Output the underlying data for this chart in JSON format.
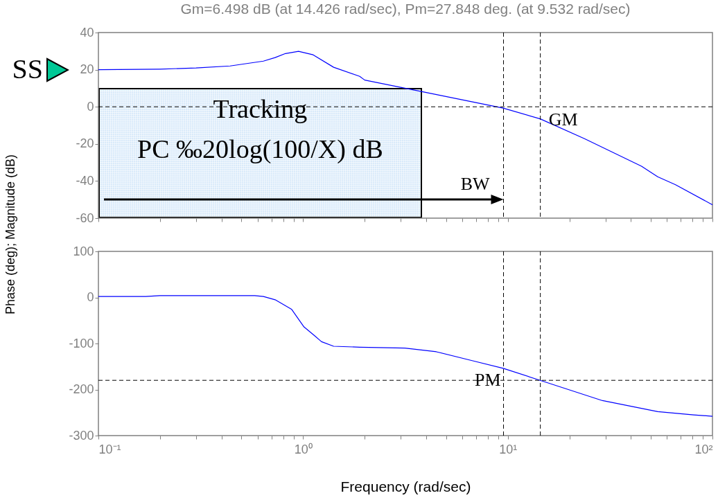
{
  "chart_data": [
    {
      "type": "line",
      "title": "Gm=6.498 dB (at 14.426 rad/sec), Pm=27.848 deg. (at 9.532 rad/sec)",
      "ylabel": "Phase (deg); Magnitude (dB)",
      "log": "x",
      "series": [
        {
          "color": "#0000ff",
          "x": [
            0.1,
            0.2,
            0.3,
            0.44,
            0.64,
            0.73,
            0.82,
            0.95,
            1.12,
            1.41,
            1.89,
            2.0,
            3.5,
            9.5,
            14.4,
            23.7,
            45,
            54,
            66,
            100
          ],
          "values": [
            20,
            20.3,
            20.9,
            22,
            24.6,
            26.5,
            28.7,
            29.9,
            28,
            21.3,
            16.4,
            14.4,
            9,
            -0.7,
            -6.5,
            -17.2,
            -32,
            -37.7,
            -42,
            -52.8
          ]
        }
      ],
      "xlim": [
        0.1,
        100
      ],
      "ylim": [
        -60,
        40
      ],
      "xticks": [
        {
          "value": 0.1,
          "label": null
        },
        {
          "value": 0.2,
          "label": null
        },
        {
          "value": 0.3,
          "label": null
        },
        {
          "value": 0.4,
          "label": null
        },
        {
          "value": 0.5,
          "label": null
        },
        {
          "value": 0.6,
          "label": null
        },
        {
          "value": 0.7,
          "label": null
        },
        {
          "value": 0.8,
          "label": null
        },
        {
          "value": 0.9,
          "label": null
        },
        {
          "value": 1,
          "label": null
        },
        {
          "value": 2,
          "label": null
        },
        {
          "value": 3,
          "label": null
        },
        {
          "value": 4,
          "label": null
        },
        {
          "value": 5,
          "label": null
        },
        {
          "value": 6,
          "label": null
        },
        {
          "value": 7,
          "label": null
        },
        {
          "value": 8,
          "label": null
        },
        {
          "value": 9,
          "label": null
        },
        {
          "value": 10,
          "label": null
        },
        {
          "value": 20,
          "label": null
        },
        {
          "value": 30,
          "label": null
        },
        {
          "value": 40,
          "label": null
        },
        {
          "value": 50,
          "label": null
        },
        {
          "value": 60,
          "label": null
        },
        {
          "value": 70,
          "label": null
        },
        {
          "value": 80,
          "label": null
        },
        {
          "value": 90,
          "label": null
        },
        {
          "value": 100,
          "label": null
        }
      ],
      "yticks": [
        -60,
        -40,
        -20,
        0,
        20,
        40
      ],
      "tick_labels": "y",
      "ref_lines": [
        {
          "axis": "y",
          "value": 0,
          "color": "#000000",
          "line_style": "dashed"
        },
        {
          "axis": "x",
          "value": 9.532,
          "label": "BW",
          "color": "#000000",
          "line_style": "dashed"
        },
        {
          "axis": "x",
          "value": 14.426,
          "label": "GM",
          "color": "#000000",
          "line_style": "dashed"
        }
      ],
      "annotations": [
        {
          "text": "SS",
          "x": 0.1,
          "y": 20
        },
        "Tracking",
        "PC ‰20log(100/X) dB"
      ]
    },
    {
      "type": "line",
      "xlabel": "Frequency (rad/sec)",
      "log": "x",
      "series": [
        {
          "color": "#0000ff",
          "x": [
            0.1,
            0.17,
            0.2,
            0.58,
            0.64,
            0.73,
            0.88,
            1.01,
            1.13,
            1.23,
            1.41,
            1.89,
            3.14,
            4.48,
            6.8,
            9.5,
            14.4,
            29,
            54,
            81,
            100
          ],
          "values": [
            2,
            2,
            4,
            4,
            2,
            -5,
            -26,
            -64,
            -82,
            -96,
            -106,
            -108,
            -110,
            -118,
            -138,
            -154,
            -180,
            -224,
            -248,
            -255,
            -258
          ]
        }
      ],
      "xlim": [
        0.1,
        100
      ],
      "ylim": [
        -300,
        100
      ],
      "xticks": [
        {
          "value": 0.1,
          "label": "10⁻¹"
        },
        {
          "value": 0.2,
          "label": null
        },
        {
          "value": 0.3,
          "label": null
        },
        {
          "value": 0.4,
          "label": null
        },
        {
          "value": 0.5,
          "label": null
        },
        {
          "value": 0.6,
          "label": null
        },
        {
          "value": 0.7,
          "label": null
        },
        {
          "value": 0.8,
          "label": null
        },
        {
          "value": 0.9,
          "label": null
        },
        {
          "value": 1,
          "label": "10⁰"
        },
        {
          "value": 2,
          "label": null
        },
        {
          "value": 3,
          "label": null
        },
        {
          "value": 4,
          "label": null
        },
        {
          "value": 5,
          "label": null
        },
        {
          "value": 6,
          "label": null
        },
        {
          "value": 7,
          "label": null
        },
        {
          "value": 8,
          "label": null
        },
        {
          "value": 9,
          "label": null
        },
        {
          "value": 10,
          "label": "10¹"
        },
        {
          "value": 20,
          "label": null
        },
        {
          "value": 30,
          "label": null
        },
        {
          "value": 40,
          "label": null
        },
        {
          "value": 50,
          "label": null
        },
        {
          "value": 60,
          "label": null
        },
        {
          "value": 70,
          "label": null
        },
        {
          "value": 80,
          "label": null
        },
        {
          "value": 90,
          "label": null
        },
        {
          "value": 100,
          "label": "10²"
        }
      ],
      "yticks": [
        -300,
        -200,
        -100,
        0,
        100
      ],
      "ref_lines": [
        {
          "axis": "y",
          "value": -180,
          "label": "PM",
          "color": "#000000",
          "line_style": "dashed"
        },
        {
          "axis": "x",
          "value": 9.532,
          "color": "#000000",
          "line_style": "dashed"
        },
        {
          "axis": "x",
          "value": 14.426,
          "color": "#000000",
          "line_style": "dashed"
        }
      ]
    }
  ]
}
